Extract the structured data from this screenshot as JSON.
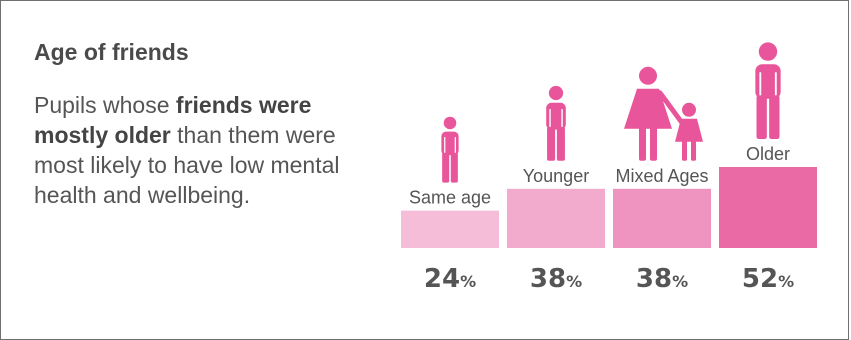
{
  "heading": "Age of friends",
  "description": {
    "before": "Pupils whose ",
    "bold": "friends were mostly older",
    "after": " than them were most likely to have low mental health and wellbeing."
  },
  "chart_data": {
    "type": "bar",
    "categories": [
      "Same age",
      "Younger",
      "Mixed Ages",
      "Older"
    ],
    "values": [
      24,
      38,
      38,
      52
    ],
    "value_labels": [
      "24",
      "38",
      "38",
      "52"
    ],
    "unit": "%",
    "colors": [
      "#f5bdd8",
      "#f3abcd",
      "#ef93c0",
      "#ea6aa6"
    ],
    "icon_color": "#e9559a",
    "icons": [
      "standing-person-icon",
      "standing-person-icon",
      "adult-with-child-icon",
      "standing-person-icon"
    ]
  }
}
